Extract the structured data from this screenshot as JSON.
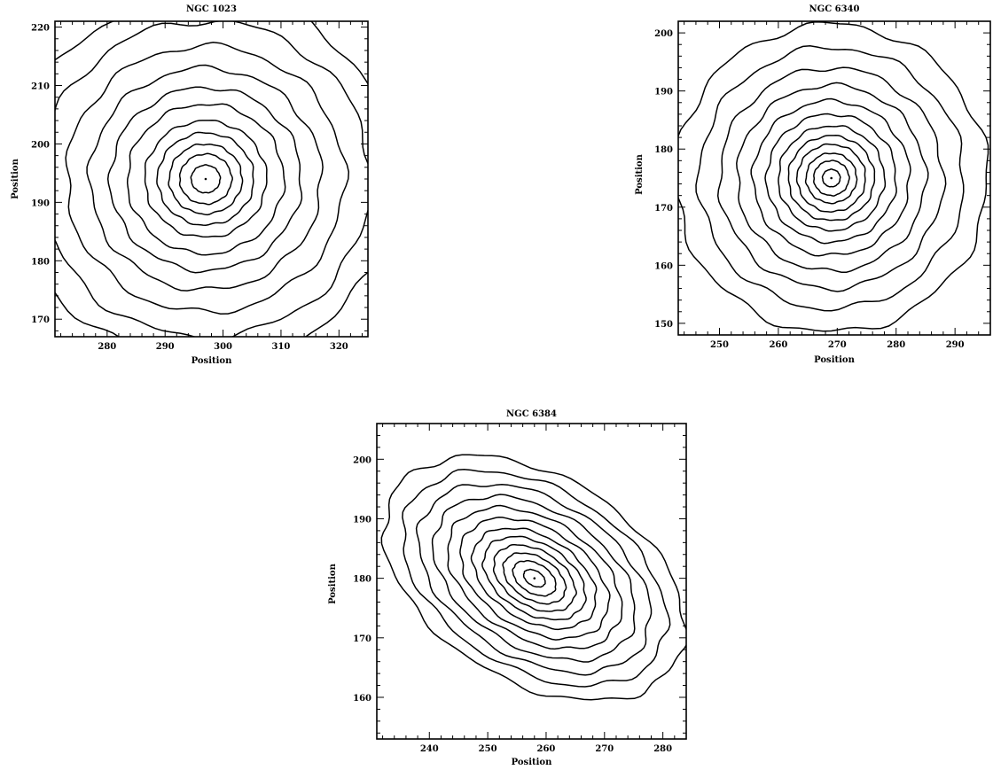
{
  "chart_data": [
    {
      "type": "contour",
      "title": "NGC 1023",
      "xlabel": "Position",
      "ylabel": "Position",
      "xlim": [
        271,
        325
      ],
      "ylim": [
        167,
        221
      ],
      "xticks": [
        280,
        290,
        300,
        310,
        320
      ],
      "yticks": [
        170,
        180,
        190,
        200,
        210,
        220
      ],
      "center": [
        297,
        194
      ],
      "contour_radii_x": [
        2.5,
        4.5,
        6.3,
        8.3,
        10.5,
        13.5,
        16.5,
        20,
        24,
        28.5,
        33
      ],
      "axis_ratio": 0.95,
      "position_angle_deg": 0
    },
    {
      "type": "contour",
      "title": "NGC 6340",
      "xlabel": "Position",
      "ylabel": "Position",
      "xlim": [
        243,
        296
      ],
      "ylim": [
        148,
        202
      ],
      "xticks": [
        250,
        260,
        270,
        280,
        290
      ],
      "yticks": [
        150,
        160,
        170,
        180,
        190,
        200
      ],
      "center": [
        269,
        175
      ],
      "contour_radii_x": [
        1.5,
        3,
        4.3,
        5.8,
        7.3,
        9,
        11,
        13.3,
        16,
        19,
        22.5,
        26.5
      ],
      "axis_ratio": 1.0,
      "position_angle_deg": 0
    },
    {
      "type": "contour",
      "title": "NGC 6384",
      "xlabel": "Position",
      "ylabel": "Position",
      "xlim": [
        231,
        284
      ],
      "ylim": [
        153,
        206
      ],
      "xticks": [
        240,
        250,
        260,
        270,
        280
      ],
      "yticks": [
        160,
        170,
        180,
        190,
        200
      ],
      "center": [
        258,
        180
      ],
      "contour_radii_x": [
        2,
        4,
        5.8,
        7.6,
        9.5,
        11.5,
        13.8,
        16.2,
        18.8,
        21.6,
        24.6,
        28
      ],
      "axis_ratio": 0.62,
      "position_angle_deg": 30
    }
  ]
}
